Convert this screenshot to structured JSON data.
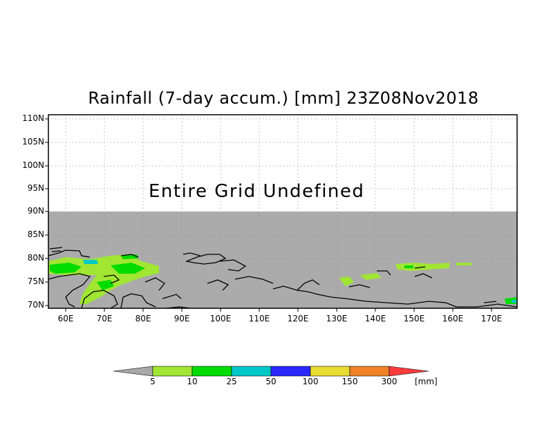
{
  "title": "Rainfall (7-day accum.) [mm] 23Z08Nov2018",
  "message": "Entire Grid Undefined",
  "map": {
    "lat_ticks": [
      "110N",
      "105N",
      "100N",
      "95N",
      "90N",
      "85N",
      "80N",
      "75N",
      "70N"
    ],
    "lon_ticks": [
      "60E",
      "70E",
      "80E",
      "90E",
      "100E",
      "110E",
      "120E",
      "130E",
      "140E",
      "150E",
      "160E",
      "170E"
    ],
    "undefined_color": "#ababab"
  },
  "colorbar": {
    "labels": [
      "5",
      "10",
      "25",
      "50",
      "100",
      "150",
      "300"
    ],
    "unit": "[mm]",
    "colors": [
      "#a8a8a8",
      "#a0e632",
      "#00dc00",
      "#00c8c8",
      "#2828ff",
      "#e6dc32",
      "#f08228",
      "#fa3c3c"
    ]
  }
}
